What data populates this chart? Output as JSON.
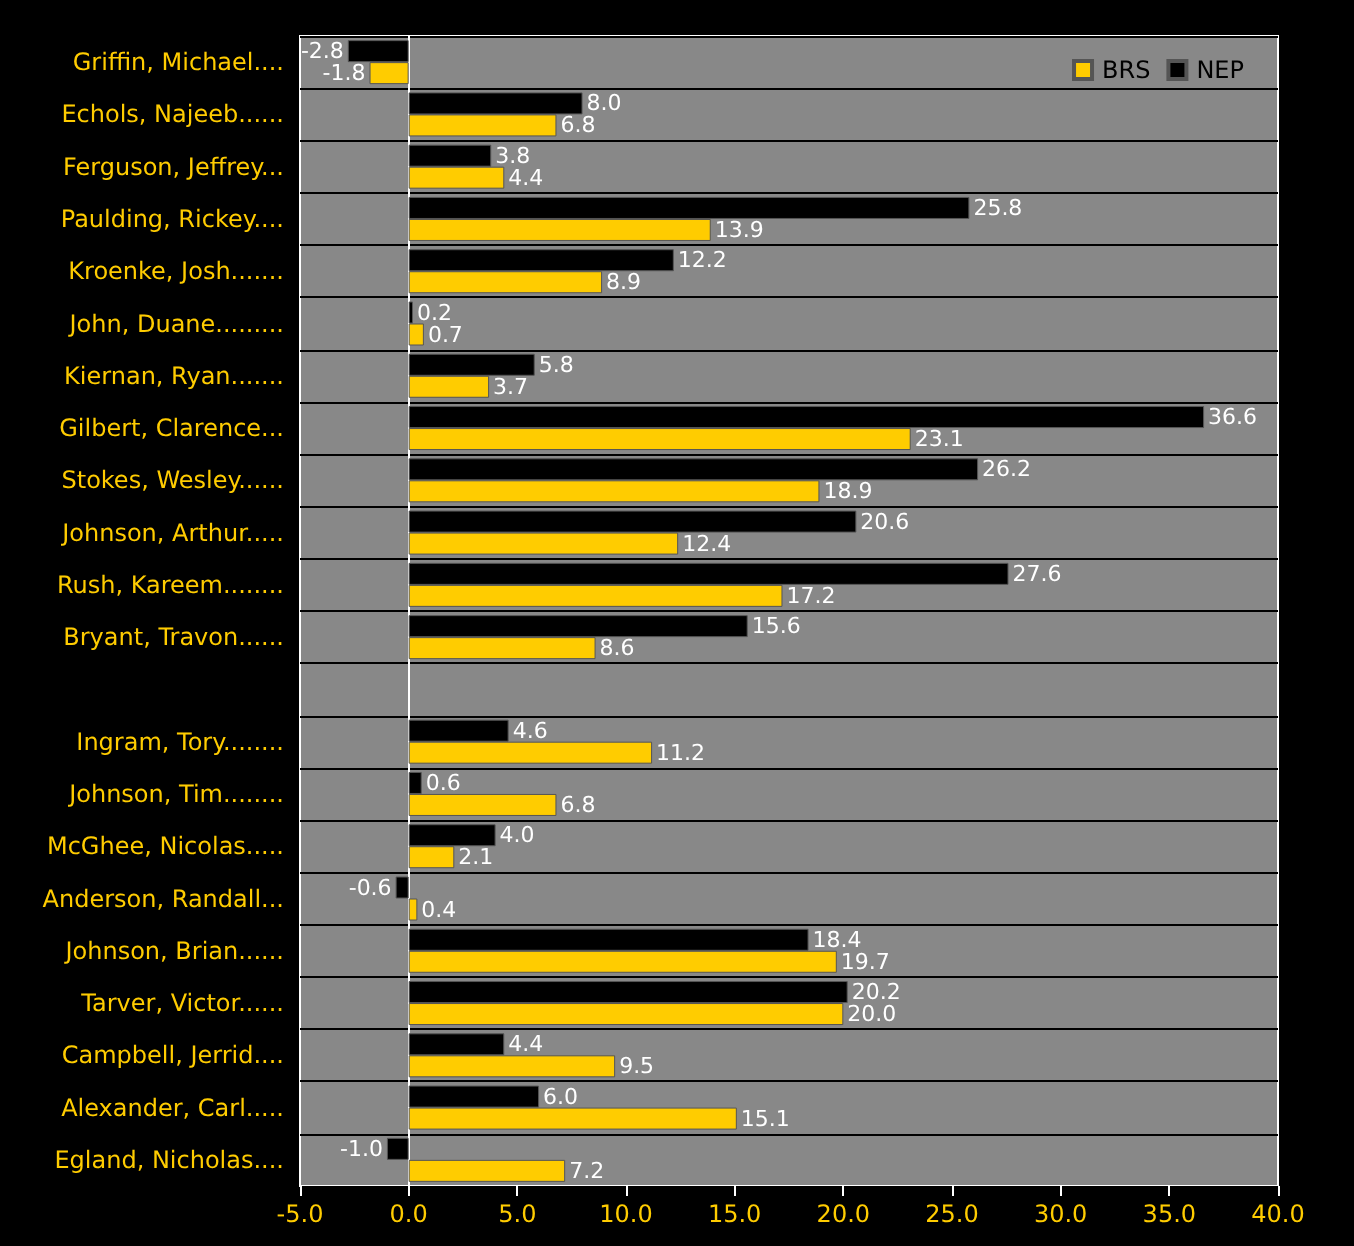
{
  "chart_data": {
    "type": "bar",
    "orientation": "horizontal",
    "categories": [
      "Griffin, Michael....",
      "Echols, Najeeb......",
      "Ferguson, Jeffrey...",
      "Paulding, Rickey....",
      "Kroenke, Josh.......",
      "John, Duane.........",
      "Kiernan, Ryan.......",
      "Gilbert, Clarence...",
      "Stokes, Wesley......",
      "Johnson, Arthur.....",
      "Rush, Kareem........",
      "Bryant, Travon......",
      null,
      "Ingram, Tory........",
      "Johnson, Tim........",
      "McGhee, Nicolas.....",
      "Anderson, Randall...",
      "Johnson, Brian......",
      "Tarver, Victor......",
      "Campbell, Jerrid....",
      "Alexander, Carl.....",
      "Egland, Nicholas...."
    ],
    "series": [
      {
        "name": "BRS",
        "color": "#ffcc00",
        "values": [
          -1.8,
          6.8,
          4.4,
          13.9,
          8.9,
          0.7,
          3.7,
          23.1,
          18.9,
          12.4,
          17.2,
          8.6,
          null,
          11.2,
          6.8,
          2.1,
          0.4,
          19.7,
          20.0,
          9.5,
          15.1,
          7.2
        ],
        "value_labels": [
          "-1.8",
          "6.8",
          "4.4",
          "13.9",
          "8.9",
          "0.7",
          "3.7",
          "23.1",
          "18.9",
          "12.4",
          "17.2",
          "8.6",
          null,
          "11.2",
          "6.8",
          "2.1",
          "0.4",
          "19.7",
          "20.0",
          "9.5",
          "15.1",
          "7.2"
        ]
      },
      {
        "name": "NEP",
        "color": "#000000",
        "values": [
          -2.8,
          8.0,
          3.8,
          25.8,
          12.2,
          0.2,
          5.8,
          36.6,
          26.2,
          20.6,
          27.6,
          15.6,
          null,
          4.6,
          0.6,
          4.0,
          -0.6,
          18.4,
          20.2,
          4.4,
          6.0,
          -1.0
        ],
        "value_labels": [
          "-2.8",
          "8.0",
          "3.8",
          "25.8",
          "12.2",
          "0.2",
          "5.8",
          "36.6",
          "26.2",
          "20.6",
          "27.6",
          "15.6",
          null,
          "4.6",
          "0.6",
          "4.0",
          "-0.6",
          "18.4",
          "20.2",
          "4.4",
          "6.0",
          "-1.0"
        ]
      }
    ],
    "xlim": [
      -5,
      40
    ],
    "xticks": [
      {
        "value": -5,
        "label": "-5.0"
      },
      {
        "value": 0,
        "label": "0.0"
      },
      {
        "value": 5,
        "label": "5.0"
      },
      {
        "value": 10,
        "label": "10.0"
      },
      {
        "value": 15,
        "label": "15.0"
      },
      {
        "value": 20,
        "label": "20.0"
      },
      {
        "value": 25,
        "label": "25.0"
      },
      {
        "value": 30,
        "label": "30.0"
      },
      {
        "value": 35,
        "label": "35.0"
      },
      {
        "value": 40,
        "label": "40.0"
      }
    ],
    "grid": "y",
    "legend": "top right"
  }
}
